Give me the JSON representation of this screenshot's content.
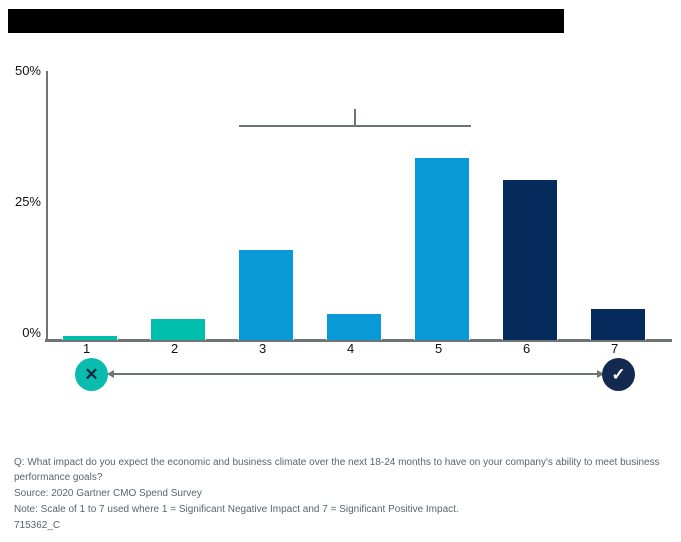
{
  "header": {
    "redacted_title_bar": true,
    "title_bar_color": "#000000"
  },
  "chart_data": {
    "type": "bar",
    "title": "",
    "xlabel": "",
    "ylabel": "",
    "categories": [
      "1",
      "2",
      "3",
      "4",
      "5",
      "6",
      "7"
    ],
    "values": [
      1,
      4,
      17,
      5,
      34,
      30,
      6
    ],
    "unit": "%",
    "ylim": [
      0,
      50
    ],
    "ytick_labels": [
      "0%",
      "25%",
      "50%"
    ],
    "bar_colors": [
      "#00BEAC",
      "#00BEAC",
      "#0999D6",
      "#0999D6",
      "#0999D6",
      "#042B5C",
      "#042B5C"
    ],
    "grid": false,
    "legend_position": "none",
    "annotation": {
      "type": "bracket",
      "spans_categories": [
        "3",
        "4",
        "5"
      ]
    }
  },
  "scale_legend": {
    "left_glyph": "✕",
    "right_glyph": "✓",
    "left_color": "#0ABCAE",
    "right_color": "#14294F",
    "left_glyph_color": "#0F2B46",
    "right_glyph_color": "#FFFFFF"
  },
  "footer": {
    "question": "Q: What impact do you expect the economic and business climate over the next 18-24 months to have on your company's ability to meet business performance goals?",
    "source": "Source: 2020 Gartner CMO Spend Survey",
    "note": "Note: Scale of 1 to 7 used where 1 = Significant Negative Impact and 7 = Significant Positive Impact.",
    "document_id": "715362_C"
  },
  "colors": {
    "axis": "#6E7473",
    "tick_text": "#111111",
    "footer_text": "#5A656B"
  }
}
